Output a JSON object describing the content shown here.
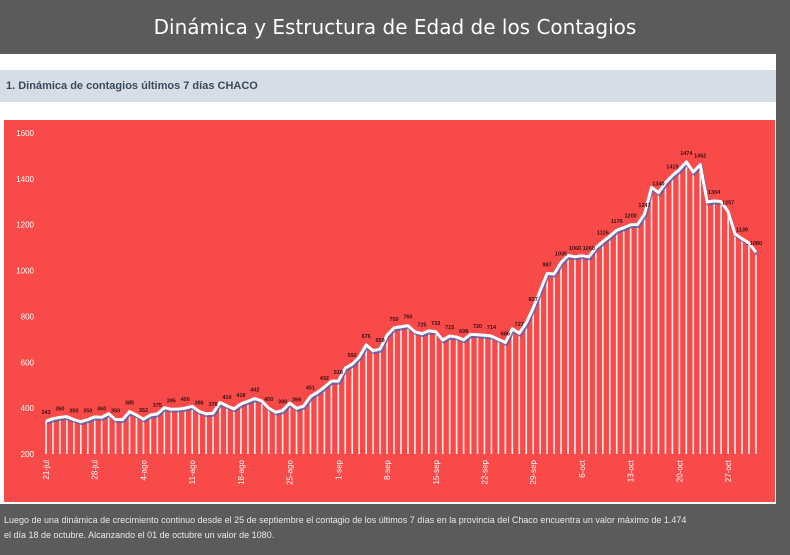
{
  "header": {
    "title": "Dinámica y Estructura de Edad de los Contagios"
  },
  "section": {
    "title": "1. Dinámica de contagios últimos 7 días CHACO"
  },
  "footer": {
    "line1": "Luego de una dinámica de crecimiento continuo desde el 25 de septiembre el contagio de los últimos 7 días en la provincia del Chaco encuentra un valor máximo de 1.474",
    "line2": "el día  18 de octubre. Alcanzando el 01 de octubre un valor de 1080."
  },
  "colors": {
    "background": "#f94a4a",
    "line": "#ffffff",
    "shadow": "#5060b0",
    "bars": "#ffffff"
  },
  "chart_data": {
    "type": "line",
    "title": "",
    "xlabel": "",
    "ylabel": "",
    "ylim": [
      200,
      1600
    ],
    "yticks": [
      200,
      400,
      600,
      800,
      1000,
      1200,
      1400,
      1600
    ],
    "xticks": [
      "21-jul",
      "28-jul",
      "4-ago",
      "11-ago",
      "18-ago",
      "25-ago",
      "1-sep",
      "8-sep",
      "15-sep",
      "22-sep",
      "29-sep",
      "6-oct",
      "13-oct",
      "20-oct",
      "27-oct"
    ],
    "grid": false,
    "values": [
      343,
      354,
      360,
      363,
      350,
      341,
      350,
      362,
      360,
      376,
      350,
      350,
      385,
      370,
      352,
      370,
      375,
      402,
      395,
      396,
      400,
      408,
      386,
      375,
      378,
      425,
      410,
      397,
      418,
      430,
      442,
      431,
      400,
      382,
      390,
      422,
      399,
      409,
      451,
      469,
      492,
      518,
      518,
      575,
      592,
      623,
      676,
      650,
      658,
      718,
      750,
      755,
      760,
      733,
      725,
      737,
      733,
      697,
      715,
      710,
      698,
      722,
      720,
      718,
      714,
      700,
      686,
      746,
      727,
      772,
      837,
      912,
      987,
      985,
      1035,
      1066,
      1060,
      1065,
      1060,
      1100,
      1126,
      1150,
      1176,
      1187,
      1200,
      1201,
      1247,
      1363,
      1340,
      1383,
      1415,
      1440,
      1474,
      1430,
      1462,
      1299,
      1304,
      1301,
      1257,
      1160,
      1139,
      1120,
      1080
    ]
  }
}
